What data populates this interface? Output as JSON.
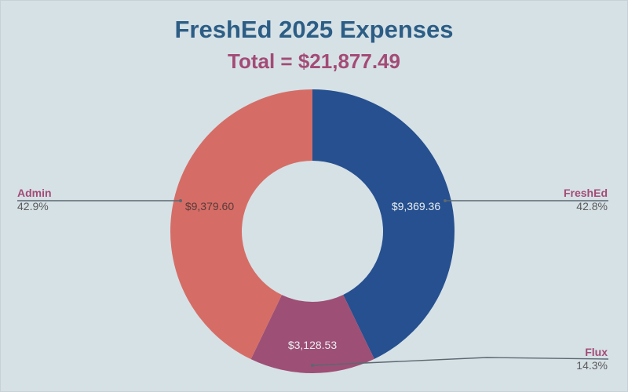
{
  "chart_data": {
    "type": "pie",
    "title": "FreshEd 2025 Expenses",
    "subtitle": "Total = $21,877.49",
    "slices": [
      {
        "label": "FreshEd",
        "value": 9369.36,
        "value_label": "$9,369.36",
        "percent_label": "42.8%",
        "color": "#26508f"
      },
      {
        "label": "Flux",
        "value": 3128.53,
        "value_label": "$3,128.53",
        "percent_label": "14.3%",
        "color": "#9e4f75"
      },
      {
        "label": "Admin",
        "value": 9379.6,
        "value_label": "$9,379.60",
        "percent_label": "42.9%",
        "color": "#d56d66"
      }
    ],
    "donut": true,
    "legend_placement": "callouts-outside"
  }
}
